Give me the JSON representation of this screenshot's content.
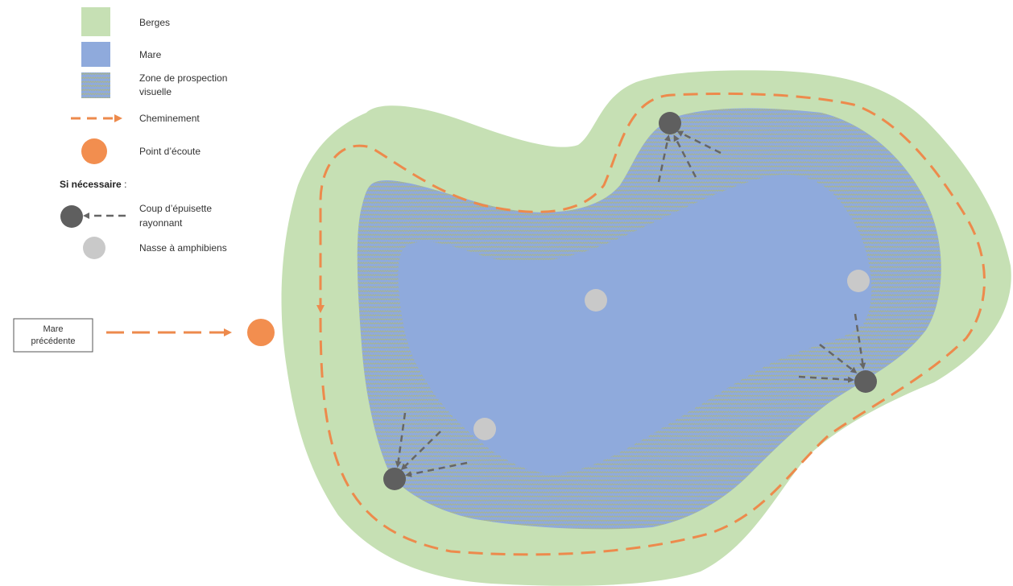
{
  "legend": {
    "berges": "Berges",
    "mare": "Mare",
    "zone_line1": "Zone de prospection",
    "zone_line2": "visuelle",
    "cheminement": "Cheminement",
    "point_ecoute": "Point d’écoute",
    "si_necessaire": "Si nécessaire",
    "si_necessaire_colon": " :",
    "coup_line1": "Coup d’épuisette",
    "coup_line2": "rayonnant",
    "nasse": "Nasse à amphibiens"
  },
  "start_box": {
    "line1": "Mare",
    "line2": "précédente"
  },
  "colors": {
    "berges": "#c6e0b4",
    "mare": "#8faadc",
    "zone_hatch": "#a9b58a",
    "cheminement": "#ed8a4c",
    "point_ecoute": "#f28e4f",
    "epuisette": "#5f5f5f",
    "nasse": "#c9c9c9",
    "arrow_gray": "#666666"
  }
}
